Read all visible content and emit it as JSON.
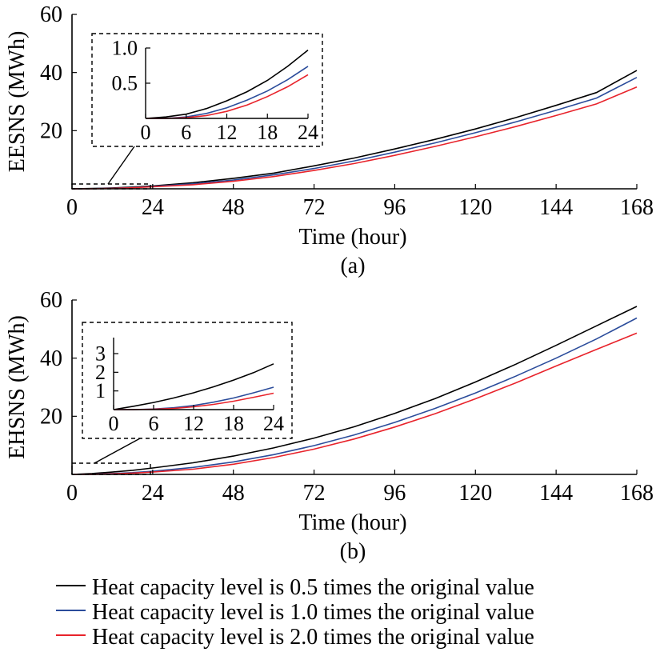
{
  "chart_data": [
    {
      "type": "line",
      "panel_label": "(a)",
      "xlabel": "Time (hour)",
      "ylabel": "EESNS (MWh)",
      "xlim": [
        0,
        168
      ],
      "ylim": [
        0,
        60
      ],
      "xticks": [
        0,
        24,
        48,
        72,
        96,
        120,
        144,
        168
      ],
      "yticks": [
        20,
        40,
        60
      ],
      "x": [
        0,
        6,
        12,
        18,
        24,
        36,
        48,
        60,
        72,
        84,
        96,
        108,
        120,
        132,
        144,
        156,
        168
      ],
      "series": [
        {
          "name": "Heat capacity level is 0.5 times the original value",
          "color": "#000000",
          "values": [
            0,
            0.1,
            0.3,
            0.6,
            1.0,
            2.1,
            3.6,
            5.4,
            7.9,
            10.6,
            13.7,
            17.0,
            20.6,
            24.5,
            28.7,
            33.1,
            40.7
          ]
        },
        {
          "name": "Heat capacity level is 1.0 times the original value",
          "color": "#2b4c9b",
          "values": [
            0,
            0.05,
            0.2,
            0.45,
            0.8,
            1.7,
            3.0,
            4.8,
            7.0,
            9.6,
            12.6,
            15.8,
            19.3,
            23.0,
            27.0,
            31.2,
            38.3
          ]
        },
        {
          "name": "Heat capacity level is 2.0 times the original value",
          "color": "#e8232b",
          "values": [
            0,
            0.04,
            0.15,
            0.35,
            0.7,
            1.4,
            2.6,
            4.2,
            6.3,
            8.7,
            11.5,
            14.6,
            17.9,
            21.4,
            25.2,
            29.2,
            35.0
          ]
        }
      ],
      "inset": {
        "xlim": [
          0,
          24
        ],
        "ylim": [
          0,
          1.0
        ],
        "xticks": [
          0,
          6,
          12,
          18,
          24
        ],
        "yticks": [
          0.5,
          1.0
        ],
        "ytick_labels": [
          "0.5",
          "1.0"
        ],
        "x": [
          0,
          3,
          6,
          9,
          12,
          15,
          18,
          21,
          24
        ],
        "series": [
          {
            "color": "#000000",
            "values": [
              0,
              0.02,
              0.06,
              0.14,
              0.25,
              0.38,
              0.54,
              0.74,
              0.97
            ]
          },
          {
            "color": "#2b4c9b",
            "values": [
              0,
              0.0,
              0.02,
              0.07,
              0.15,
              0.26,
              0.39,
              0.55,
              0.74
            ]
          },
          {
            "color": "#e8232b",
            "values": [
              0,
              0.0,
              0.01,
              0.04,
              0.1,
              0.19,
              0.31,
              0.45,
              0.62
            ]
          }
        ]
      }
    },
    {
      "type": "line",
      "panel_label": "(b)",
      "xlabel": "Time (hour)",
      "ylabel": "EHSNS (MWh)",
      "xlim": [
        0,
        168
      ],
      "ylim": [
        0,
        60
      ],
      "xticks": [
        0,
        24,
        48,
        72,
        96,
        120,
        144,
        168
      ],
      "yticks": [
        20,
        40,
        60
      ],
      "x": [
        0,
        6,
        12,
        18,
        24,
        36,
        48,
        60,
        72,
        84,
        96,
        108,
        120,
        132,
        144,
        156,
        168
      ],
      "series": [
        {
          "name": "Heat capacity level is 0.5 times the original value",
          "color": "#000000",
          "values": [
            0,
            0.3,
            0.8,
            1.4,
            2.2,
            4.0,
            6.3,
            9.1,
            12.5,
            16.4,
            21.0,
            26.1,
            31.8,
            37.9,
            44.4,
            51.1,
            57.8
          ]
        },
        {
          "name": "Heat capacity level is 1.0 times the original value",
          "color": "#2b4c9b",
          "values": [
            0,
            0.05,
            0.3,
            0.6,
            1.1,
            2.4,
            4.3,
            6.8,
            9.9,
            13.6,
            17.9,
            22.7,
            28.0,
            33.8,
            40.0,
            46.6,
            53.8
          ]
        },
        {
          "name": "Heat capacity level is 2.0 times the original value",
          "color": "#e8232b",
          "values": [
            0,
            0.03,
            0.2,
            0.45,
            0.8,
            1.8,
            3.5,
            5.8,
            8.7,
            12.2,
            16.3,
            20.9,
            26.0,
            31.5,
            37.3,
            43.0,
            48.6
          ]
        }
      ],
      "inset": {
        "xlim": [
          0,
          24
        ],
        "ylim": [
          0,
          3
        ],
        "xticks": [
          0,
          6,
          12,
          18,
          24
        ],
        "yticks": [
          1,
          2,
          3
        ],
        "ytick_labels": [
          "1",
          "2",
          "3"
        ],
        "x": [
          0,
          3,
          6,
          9,
          12,
          15,
          18,
          21,
          24
        ],
        "series": [
          {
            "color": "#000000",
            "values": [
              0,
              0.18,
              0.38,
              0.62,
              0.9,
              1.22,
              1.58,
              1.98,
              2.45
            ]
          },
          {
            "color": "#2b4c9b",
            "values": [
              0,
              0.0,
              0.03,
              0.1,
              0.22,
              0.4,
              0.62,
              0.9,
              1.2
            ]
          },
          {
            "color": "#e8232b",
            "values": [
              0,
              0.0,
              0.02,
              0.06,
              0.15,
              0.28,
              0.45,
              0.66,
              0.88
            ]
          }
        ]
      }
    }
  ]
}
